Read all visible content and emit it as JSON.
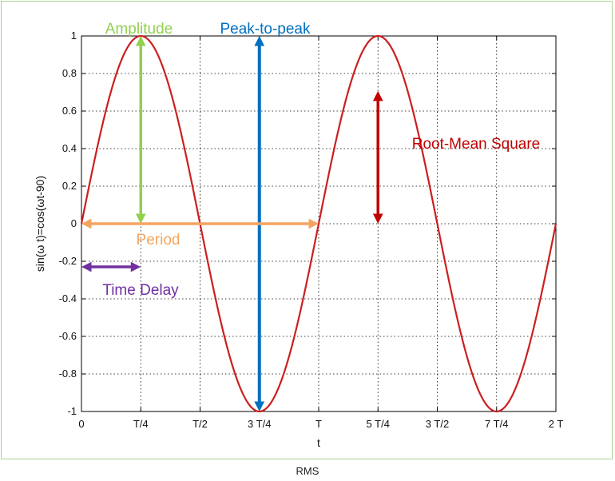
{
  "chart_data": {
    "type": "line",
    "xlabel": "t",
    "ylabel": "sin(ω t)=cos(ωt-90)",
    "x_tick_labels": [
      "0",
      "T/4",
      "T/2",
      "3 T/4",
      "T",
      "5 T/4",
      "3 T/2",
      "7 T/4",
      "2 T"
    ],
    "x_range_periods": [
      0,
      2
    ],
    "ylim": [
      -1,
      1
    ],
    "y_ticks": [
      -1,
      -0.8,
      -0.6,
      -0.4,
      -0.2,
      0,
      0.2,
      0.4,
      0.6,
      0.8,
      1
    ],
    "y_tick_labels": [
      "-1",
      "-0.8",
      "-0.6",
      "-0.4",
      "-0.2",
      "0",
      "0.2",
      "0.4",
      "0.6",
      "0.8",
      "1"
    ],
    "grid": true,
    "series": [
      {
        "function": "sin(2πt/T)",
        "x_periods": [
          0,
          2
        ],
        "color": "#cc1f1f"
      }
    ],
    "annotations": [
      {
        "label": "Amplitude",
        "color": "#92d050",
        "arrow": {
          "x_periods": [
            0.25,
            0.25
          ],
          "y": [
            0,
            1
          ]
        }
      },
      {
        "label": "Peak-to-peak",
        "color": "#0070c0",
        "arrow": {
          "x_periods": [
            0.75,
            0.75
          ],
          "y": [
            -1,
            1
          ]
        }
      },
      {
        "label": "Root-Mean Square",
        "color": "#c00000",
        "arrow": {
          "x_periods": [
            1.25,
            1.25
          ],
          "y": [
            0,
            0.707
          ]
        }
      },
      {
        "label": "Period",
        "color": "#f4a460",
        "arrow": {
          "x_periods": [
            0,
            1
          ],
          "y": [
            0,
            0
          ]
        }
      },
      {
        "label": "Time Delay",
        "color": "#7030a0",
        "arrow": {
          "x_periods": [
            0,
            0.25
          ],
          "y": [
            -0.23,
            -0.23
          ]
        }
      }
    ]
  },
  "caption": "RMS"
}
